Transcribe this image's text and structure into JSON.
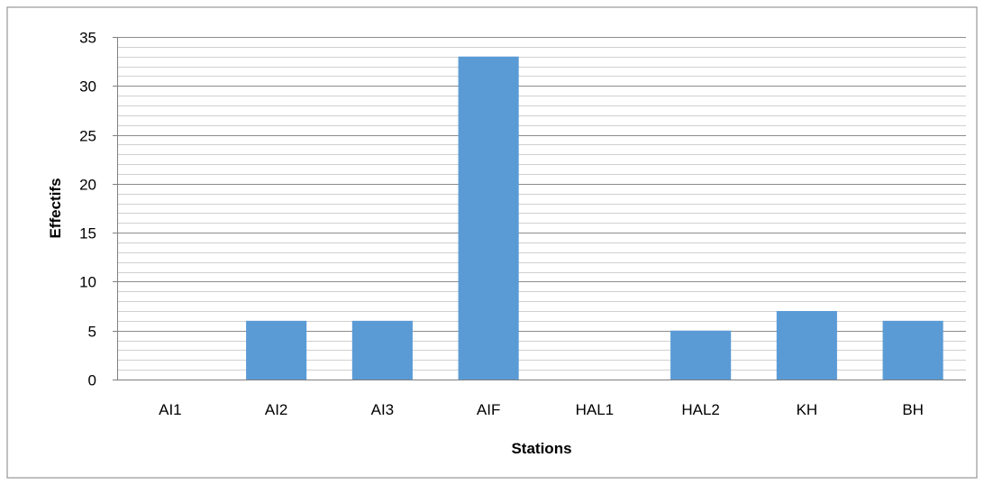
{
  "chart_data": {
    "type": "bar",
    "categories": [
      "AI1",
      "AI2",
      "AI3",
      "AIF",
      "HAL1",
      "HAL2",
      "KH",
      "BH"
    ],
    "values": [
      0,
      6,
      6,
      33,
      0,
      5,
      7,
      6
    ],
    "title": "",
    "xlabel": "Stations",
    "ylabel": "Effectifs",
    "ylim": [
      0,
      35
    ],
    "y_major_step": 5,
    "y_minor_step": 1,
    "grid": true,
    "legend": "none",
    "colors": {
      "bar": "#5B9BD5",
      "major_grid": "#8c8c8c",
      "minor_grid": "#d0d0d0",
      "axis": "#7f7f7f",
      "frame": "#808080"
    }
  }
}
